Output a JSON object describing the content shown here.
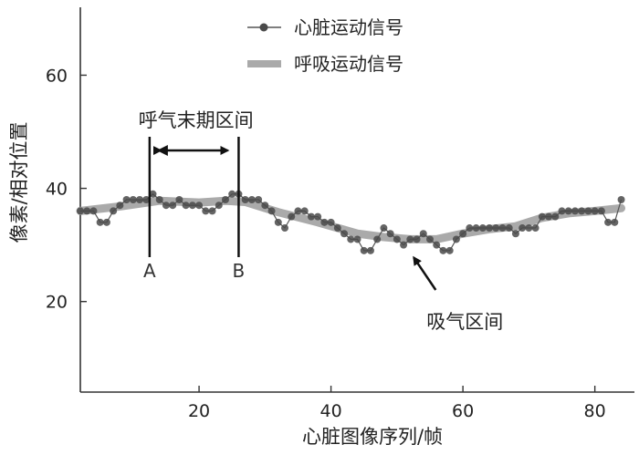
{
  "chart_data": {
    "type": "line",
    "xlabel": "心脏图像序列/帧",
    "ylabel": "像素/相对位置",
    "xlim": [
      2,
      86
    ],
    "ylim": [
      4,
      72
    ],
    "xticks": [
      20,
      40,
      60,
      80
    ],
    "yticks": [
      20,
      40,
      60
    ],
    "grid": false,
    "legend": "top-right",
    "series": [
      {
        "name": "心脏运动信号",
        "style": "line-with-dots",
        "color": "#555555",
        "x": [
          2,
          3,
          4,
          5,
          6,
          7,
          8,
          9,
          10,
          11,
          12,
          13,
          14,
          15,
          16,
          17,
          18,
          19,
          20,
          21,
          22,
          23,
          24,
          25,
          26,
          27,
          28,
          29,
          30,
          31,
          32,
          33,
          34,
          35,
          36,
          37,
          38,
          39,
          40,
          41,
          42,
          43,
          44,
          45,
          46,
          47,
          48,
          49,
          50,
          51,
          52,
          53,
          54,
          55,
          56,
          57,
          58,
          59,
          60,
          61,
          62,
          63,
          64,
          65,
          66,
          67,
          68,
          69,
          70,
          71,
          72,
          73,
          74,
          75,
          76,
          77,
          78,
          79,
          80,
          81,
          82,
          83,
          84
        ],
        "y": [
          36,
          36,
          36,
          34,
          34,
          36,
          37,
          38,
          38,
          38,
          38,
          39,
          38,
          37,
          37,
          38,
          37,
          37,
          37,
          36,
          36,
          37,
          38,
          39,
          39,
          38,
          38,
          38,
          37,
          36,
          34,
          33,
          35,
          36,
          36,
          35,
          35,
          34,
          34,
          33,
          32,
          31,
          31,
          29,
          29,
          31,
          33,
          32,
          31,
          30,
          31,
          31,
          32,
          31,
          30,
          29,
          29,
          31,
          32,
          33,
          33,
          33,
          33,
          33,
          33,
          33,
          32,
          33,
          33,
          33,
          35,
          35,
          35,
          36,
          36,
          36,
          36,
          36,
          36,
          36,
          34,
          34,
          38
        ]
      },
      {
        "name": "呼吸运动信号",
        "style": "thick-line",
        "color": "#aaaaaa",
        "x": [
          2,
          8,
          14,
          20,
          24,
          27,
          32,
          38,
          44,
          48,
          52,
          56,
          60,
          64,
          68,
          72,
          76,
          80,
          84
        ],
        "y": [
          36,
          36.8,
          37.8,
          37.5,
          37.8,
          37.6,
          35.8,
          34,
          32,
          31.4,
          31,
          31,
          32,
          32.8,
          33.3,
          34.8,
          35.6,
          36,
          36.5
        ]
      }
    ],
    "annotations": [
      {
        "label": "A",
        "x": 12.5
      },
      {
        "label": "B",
        "x": 26
      },
      {
        "label": "呼气末期区间",
        "from": 12.5,
        "to": 26
      },
      {
        "label": "吸气区间",
        "point_x": 52,
        "point_y": 31
      }
    ]
  }
}
